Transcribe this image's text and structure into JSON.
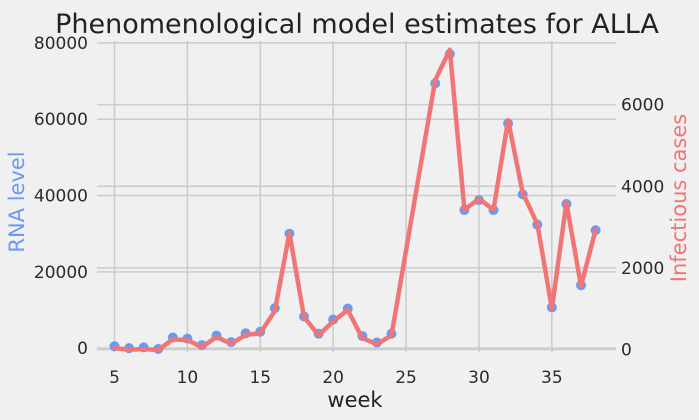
{
  "colors": {
    "background": "#f0f0f0",
    "grid": "#cbcbcb",
    "rna": "#6a9bf4",
    "cases": "#f07676"
  },
  "chart_data": {
    "type": "line",
    "title": "Phenomenological model estimates for ALLA",
    "xlabel": "week",
    "ylabel_left": "RNA level",
    "ylabel_right": "Infectious cases",
    "xlim": [
      3.8,
      39.4
    ],
    "ylim_left": [
      -1000,
      80500
    ],
    "ylim_right": [
      -60,
      7560
    ],
    "x_ticks": [
      5,
      10,
      15,
      20,
      25,
      30,
      35
    ],
    "y_ticks_left": [
      0,
      20000,
      40000,
      60000,
      80000
    ],
    "y_ticks_right": [
      0,
      2000,
      4000,
      6000
    ],
    "grid": true,
    "x": [
      5,
      6,
      7,
      8,
      9,
      10,
      11,
      12,
      13,
      14,
      15,
      16,
      17,
      18,
      19,
      20,
      21,
      22,
      23,
      24,
      27,
      28,
      29,
      30,
      31,
      32,
      33,
      34,
      35,
      36,
      37,
      38
    ],
    "series": [
      {
        "axis": "left",
        "style": "markers",
        "values": [
          500,
          0,
          200,
          -200,
          2800,
          2500,
          800,
          3300,
          1600,
          3900,
          4300,
          10500,
          30000,
          8300,
          3800,
          7500,
          10400,
          3200,
          1500,
          3800,
          69400,
          77100,
          36200,
          38800,
          36200,
          58900,
          40300,
          32400,
          10700,
          37800,
          16500,
          30900
        ]
      },
      {
        "axis": "right",
        "style": "line",
        "values": [
          30,
          0,
          10,
          -10,
          250,
          230,
          60,
          310,
          140,
          360,
          400,
          950,
          2860,
          800,
          350,
          690,
          970,
          280,
          130,
          350,
          6600,
          7350,
          3430,
          3690,
          3430,
          5620,
          3840,
          3080,
          1000,
          3600,
          1560,
          2930
        ]
      }
    ]
  }
}
